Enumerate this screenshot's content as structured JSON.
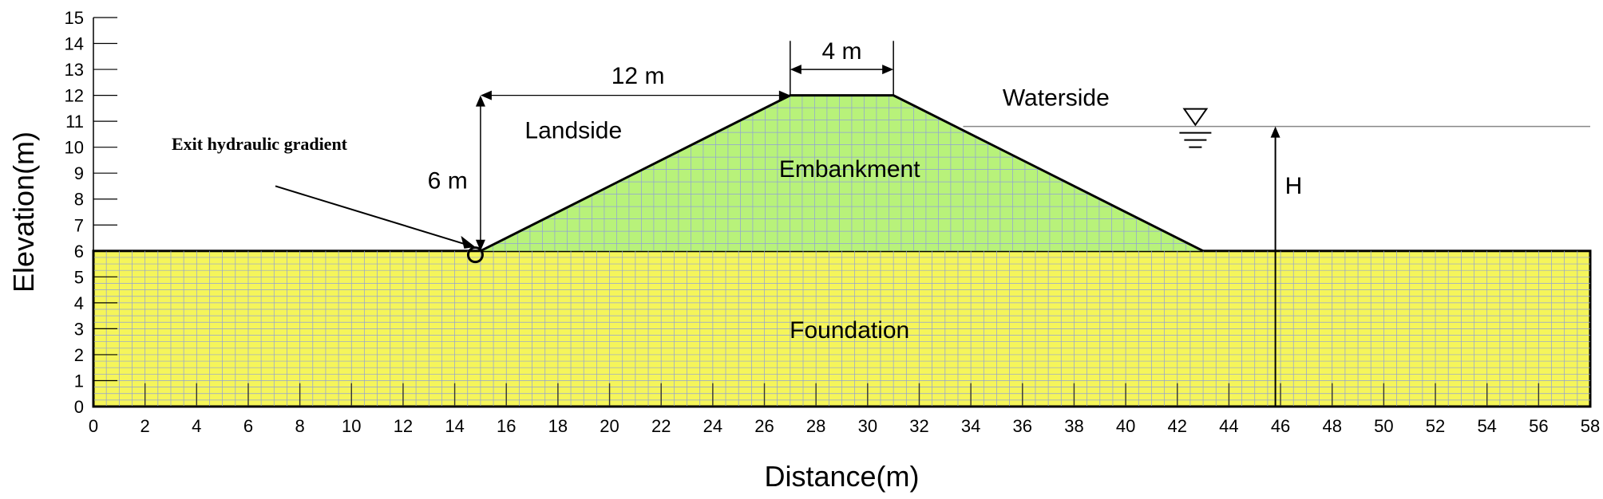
{
  "chart_data": {
    "type": "diagram",
    "xlabel": "Distance(m)",
    "ylabel": "Elevation(m)",
    "xlim": [
      0,
      58
    ],
    "ylim": [
      0,
      15
    ],
    "x_ticks": [
      "0",
      "2",
      "4",
      "6",
      "8",
      "10",
      "12",
      "14",
      "16",
      "18",
      "20",
      "22",
      "24",
      "26",
      "28",
      "30",
      "32",
      "34",
      "36",
      "38",
      "40",
      "42",
      "44",
      "46",
      "48",
      "50",
      "52",
      "54",
      "56",
      "58"
    ],
    "y_ticks": [
      "0",
      "1",
      "2",
      "3",
      "4",
      "5",
      "6",
      "7",
      "8",
      "9",
      "10",
      "11",
      "12",
      "13",
      "14",
      "15"
    ],
    "foundation": {
      "x": [
        0,
        58
      ],
      "y": [
        0,
        6
      ]
    },
    "embankment": {
      "points": [
        [
          15,
          6
        ],
        [
          27,
          12
        ],
        [
          31,
          12
        ],
        [
          43,
          6
        ]
      ]
    },
    "water_level": 10.8,
    "labels": {
      "landside": "Landside",
      "waterside": "Waterside",
      "embankment": "Embankment",
      "foundation": "Foundation",
      "exit_gradient": "Exit hydraulic gradient",
      "crest_width": "4 m",
      "slope_run": "12 m",
      "height": "6 m",
      "water_head": "H"
    },
    "colors": {
      "foundation": "#f5f55a",
      "embankment": "#b8f27a",
      "mesh": "#8f9fd8",
      "outline": "#000000"
    }
  }
}
